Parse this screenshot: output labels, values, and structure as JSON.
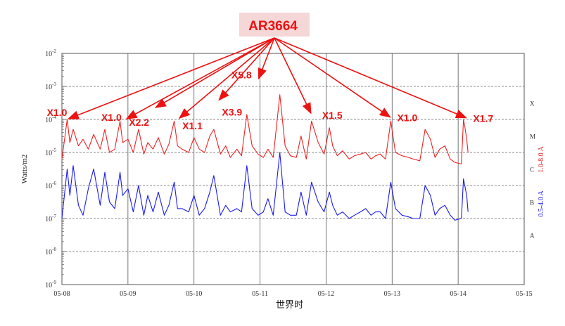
{
  "chart_data": {
    "type": "line",
    "region_label": "AR3664",
    "ylabel": "Watts/m2",
    "xlabel": "世界时",
    "y_scale": "log",
    "ylim": [
      1e-09,
      0.01
    ],
    "xlim": [
      0,
      7
    ],
    "y_ticks": [
      {
        "value": -9,
        "label": "10",
        "exp": "-9"
      },
      {
        "value": -8,
        "label": "10",
        "exp": "-8"
      },
      {
        "value": -7,
        "label": "10",
        "exp": "-7"
      },
      {
        "value": -6,
        "label": "10",
        "exp": "-6"
      },
      {
        "value": -5,
        "label": "10",
        "exp": "-5"
      },
      {
        "value": -4,
        "label": "10",
        "exp": "-4"
      },
      {
        "value": -3,
        "label": "10",
        "exp": "-3"
      },
      {
        "value": -2,
        "label": "10",
        "exp": "-2"
      }
    ],
    "x_ticks": [
      "05-08",
      "05-09",
      "05-10",
      "05-11",
      "05-12",
      "05-13",
      "05-14",
      "05-15"
    ],
    "class_labels": [
      {
        "label": "X",
        "level": -4
      },
      {
        "label": "M",
        "level": -5
      },
      {
        "label": "C",
        "level": -6
      },
      {
        "label": "B",
        "level": -7
      },
      {
        "label": "A",
        "level": -8
      }
    ],
    "series": [
      {
        "name": "1.0-8.0 A",
        "color": "#ee2222",
        "x": [
          0.0,
          0.08,
          0.12,
          0.17,
          0.25,
          0.32,
          0.4,
          0.48,
          0.58,
          0.65,
          0.72,
          0.8,
          0.88,
          0.92,
          1.0,
          1.08,
          1.16,
          1.24,
          1.3,
          1.38,
          1.46,
          1.55,
          1.62,
          1.7,
          1.75,
          1.82,
          1.92,
          2.0,
          2.08,
          2.16,
          2.24,
          2.3,
          2.4,
          2.48,
          2.55,
          2.65,
          2.72,
          2.8,
          2.88,
          2.97,
          3.05,
          3.12,
          3.2,
          3.3,
          3.38,
          3.46,
          3.55,
          3.62,
          3.7,
          3.78,
          3.88,
          3.97,
          4.05,
          4.1,
          4.17,
          4.25,
          4.35,
          4.43,
          4.52,
          4.6,
          4.68,
          4.75,
          4.82,
          4.9,
          4.98,
          5.05,
          5.15,
          5.25,
          5.32,
          5.42,
          5.5,
          5.58,
          5.65,
          5.72,
          5.8,
          5.88,
          5.95,
          6.05,
          6.08,
          6.1,
          6.13,
          6.15
        ],
        "y": [
          -5.2,
          -4.0,
          -4.7,
          -4.3,
          -4.8,
          -4.6,
          -4.9,
          -4.45,
          -4.9,
          -4.3,
          -5.0,
          -4.9,
          -4.05,
          -4.7,
          -4.6,
          -5.0,
          -4.3,
          -5.05,
          -4.7,
          -4.9,
          -4.55,
          -5.05,
          -4.75,
          -4.05,
          -4.8,
          -4.9,
          -5.0,
          -4.55,
          -4.9,
          -5.0,
          -4.5,
          -4.3,
          -5.05,
          -4.8,
          -5.15,
          -4.9,
          -5.1,
          -3.85,
          -4.8,
          -5.05,
          -5.15,
          -4.9,
          -5.15,
          -3.25,
          -4.8,
          -5.1,
          -5.15,
          -4.5,
          -5.2,
          -4.05,
          -4.7,
          -5.05,
          -4.25,
          -4.8,
          -5.1,
          -4.95,
          -5.2,
          -5.1,
          -5.05,
          -5.0,
          -5.2,
          -5.1,
          -5.05,
          -5.2,
          -4.05,
          -5.0,
          -5.1,
          -5.15,
          -5.2,
          -5.25,
          -4.3,
          -4.6,
          -5.15,
          -4.9,
          -4.8,
          -5.2,
          -5.3,
          -5.35,
          -4.0,
          -4.2,
          -4.6,
          -5.0
        ]
      },
      {
        "name": "0.5-4.0 A",
        "color": "#1a1aee",
        "x": [
          0.0,
          0.08,
          0.12,
          0.17,
          0.25,
          0.32,
          0.4,
          0.48,
          0.58,
          0.65,
          0.72,
          0.8,
          0.88,
          0.92,
          1.0,
          1.08,
          1.16,
          1.24,
          1.3,
          1.38,
          1.46,
          1.55,
          1.62,
          1.7,
          1.75,
          1.82,
          1.92,
          2.0,
          2.08,
          2.16,
          2.24,
          2.3,
          2.4,
          2.48,
          2.55,
          2.65,
          2.72,
          2.8,
          2.88,
          2.97,
          3.05,
          3.12,
          3.2,
          3.3,
          3.38,
          3.46,
          3.55,
          3.62,
          3.7,
          3.78,
          3.88,
          3.97,
          4.05,
          4.1,
          4.17,
          4.25,
          4.35,
          4.43,
          4.52,
          4.6,
          4.68,
          4.75,
          4.82,
          4.9,
          4.98,
          5.05,
          5.15,
          5.25,
          5.32,
          5.42,
          5.5,
          5.58,
          5.65,
          5.72,
          5.8,
          5.88,
          5.95,
          6.05,
          6.08,
          6.1,
          6.13,
          6.15
        ],
        "y": [
          -7.0,
          -5.5,
          -6.3,
          -5.4,
          -6.6,
          -6.9,
          -6.1,
          -5.5,
          -6.6,
          -5.6,
          -6.5,
          -6.7,
          -5.6,
          -6.3,
          -6.1,
          -6.8,
          -6.0,
          -6.9,
          -6.3,
          -6.8,
          -6.2,
          -6.9,
          -6.6,
          -5.9,
          -6.7,
          -6.7,
          -6.8,
          -6.3,
          -6.9,
          -6.7,
          -6.2,
          -5.7,
          -6.9,
          -6.6,
          -6.8,
          -6.7,
          -6.8,
          -5.4,
          -6.7,
          -6.9,
          -6.8,
          -6.4,
          -6.9,
          -5.0,
          -6.8,
          -6.9,
          -6.9,
          -6.2,
          -6.9,
          -5.9,
          -6.5,
          -6.8,
          -6.2,
          -6.6,
          -6.9,
          -6.8,
          -7.0,
          -6.9,
          -6.8,
          -6.7,
          -6.9,
          -6.8,
          -6.8,
          -7.0,
          -5.9,
          -6.7,
          -6.9,
          -6.95,
          -7.0,
          -7.0,
          -6.0,
          -6.3,
          -6.9,
          -6.7,
          -6.6,
          -6.9,
          -7.05,
          -7.0,
          -5.8,
          -6.0,
          -6.3,
          -6.8
        ]
      }
    ],
    "annotations": [
      {
        "label": "X1.0",
        "x": 0.1,
        "level": -3.98
      },
      {
        "label": "X1.0",
        "x": 0.98,
        "level": -3.98
      },
      {
        "label": "X2.2",
        "x": 1.42,
        "level": -3.64
      },
      {
        "label": "X1.1",
        "x": 1.78,
        "level": -3.96
      },
      {
        "label": "X3.9",
        "x": 2.38,
        "level": -3.41
      },
      {
        "label": "X5.8",
        "x": 2.98,
        "level": -2.76
      },
      {
        "label": "X1.5",
        "x": 3.77,
        "level": -3.81
      },
      {
        "label": "X1.0",
        "x": 4.97,
        "level": -3.93
      },
      {
        "label": "X1.7",
        "x": 6.12,
        "level": -3.95
      }
    ]
  }
}
